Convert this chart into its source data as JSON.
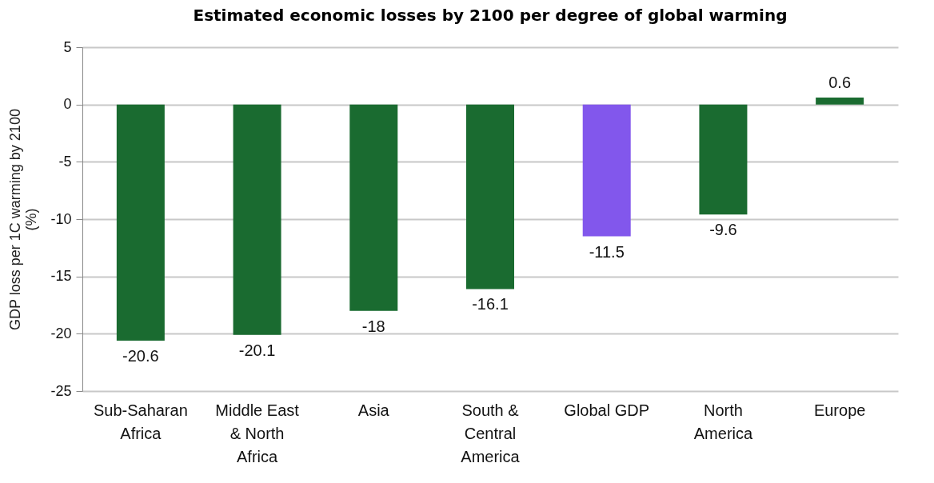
{
  "chart_data": {
    "type": "bar",
    "title": "Estimated economic losses by 2100 per degree of global warming",
    "ylabel": "GDP loss per 1C warming by 2100 (%)",
    "categories": [
      "Sub-Saharan Africa",
      "Middle East & North Africa",
      "Asia",
      "South & Central America",
      "Global GDP",
      "North America",
      "Europe"
    ],
    "values": [
      -20.6,
      -20.1,
      -18,
      -16.1,
      -11.5,
      -9.6,
      0.6
    ],
    "colors": [
      "#1a6b30",
      "#1a6b30",
      "#1a6b30",
      "#1a6b30",
      "#8257ec",
      "#1a6b30",
      "#1a6b30"
    ],
    "ylim": [
      -25,
      5
    ],
    "yticks": [
      -25,
      -20,
      -15,
      -10,
      -5,
      0,
      5
    ],
    "grid": "y",
    "data_labels": true
  }
}
